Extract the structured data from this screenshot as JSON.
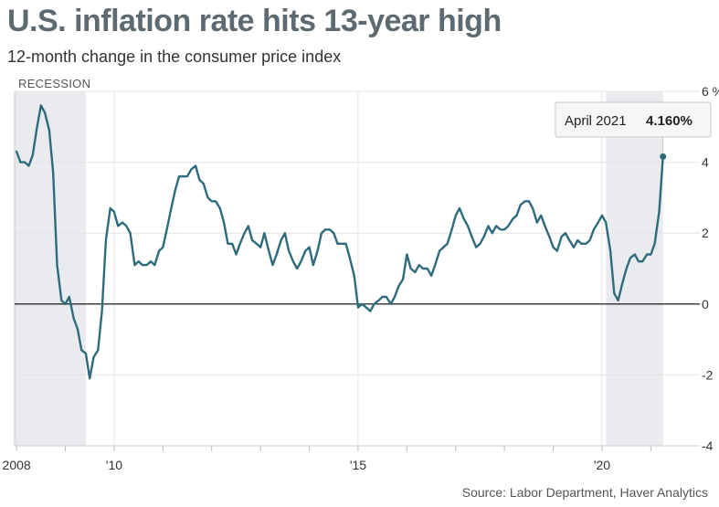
{
  "header": {
    "title": "U.S. inflation rate hits 13-year high",
    "subtitle": "12-month change in the consumer price index"
  },
  "footer": {
    "source": "Source: Labor Department, Haver Analytics"
  },
  "colors": {
    "line": "#2f6b7c",
    "recession": "#e9ebee",
    "zero_line": "#000000",
    "axis": "#cccccc"
  },
  "chart_data": {
    "type": "line",
    "title": "U.S. inflation rate hits 13-year high",
    "subtitle": "12-month change in the consumer price index",
    "x_unit": "year",
    "x_tick_labels": [
      {
        "x": 2008,
        "label": "2008"
      },
      {
        "x": 2010,
        "label": "'10"
      },
      {
        "x": 2015,
        "label": "'15"
      },
      {
        "x": 2020,
        "label": "'20"
      }
    ],
    "y_tick_labels": [
      {
        "y": 6,
        "label": "6 %"
      },
      {
        "y": 4,
        "label": "4"
      },
      {
        "y": 2,
        "label": "2"
      },
      {
        "y": 0,
        "label": "0"
      },
      {
        "y": -2,
        "label": "-2"
      },
      {
        "y": -4,
        "label": "-4"
      }
    ],
    "xlim": [
      2007.96,
      2021.33
    ],
    "ylim": [
      -4,
      6
    ],
    "legend": "none",
    "recession_label": "RECESSION",
    "recessions": [
      [
        2007.96,
        2009.42
      ],
      [
        2020.08,
        2021.25
      ]
    ],
    "highlight": {
      "x": 2021.25,
      "y": 4.16,
      "date_label": "April 2021",
      "value_label": "4.160%"
    },
    "series": [
      {
        "values": [
          [
            2008.0,
            4.3
          ],
          [
            2008.08,
            4.0
          ],
          [
            2008.17,
            4.0
          ],
          [
            2008.25,
            3.9
          ],
          [
            2008.33,
            4.2
          ],
          [
            2008.42,
            5.0
          ],
          [
            2008.5,
            5.6
          ],
          [
            2008.58,
            5.4
          ],
          [
            2008.67,
            4.9
          ],
          [
            2008.75,
            3.7
          ],
          [
            2008.83,
            1.1
          ],
          [
            2008.92,
            0.1
          ],
          [
            2009.0,
            0.0
          ],
          [
            2009.08,
            0.2
          ],
          [
            2009.17,
            -0.4
          ],
          [
            2009.25,
            -0.7
          ],
          [
            2009.33,
            -1.3
          ],
          [
            2009.42,
            -1.4
          ],
          [
            2009.5,
            -2.1
          ],
          [
            2009.58,
            -1.5
          ],
          [
            2009.67,
            -1.3
          ],
          [
            2009.75,
            -0.2
          ],
          [
            2009.83,
            1.8
          ],
          [
            2009.92,
            2.7
          ],
          [
            2010.0,
            2.6
          ],
          [
            2010.08,
            2.2
          ],
          [
            2010.17,
            2.3
          ],
          [
            2010.25,
            2.2
          ],
          [
            2010.33,
            2.0
          ],
          [
            2010.42,
            1.1
          ],
          [
            2010.5,
            1.2
          ],
          [
            2010.58,
            1.1
          ],
          [
            2010.67,
            1.1
          ],
          [
            2010.75,
            1.2
          ],
          [
            2010.83,
            1.1
          ],
          [
            2010.92,
            1.5
          ],
          [
            2011.0,
            1.6
          ],
          [
            2011.08,
            2.1
          ],
          [
            2011.17,
            2.7
          ],
          [
            2011.25,
            3.2
          ],
          [
            2011.33,
            3.6
          ],
          [
            2011.42,
            3.6
          ],
          [
            2011.5,
            3.6
          ],
          [
            2011.58,
            3.8
          ],
          [
            2011.67,
            3.9
          ],
          [
            2011.75,
            3.5
          ],
          [
            2011.83,
            3.4
          ],
          [
            2011.92,
            3.0
          ],
          [
            2012.0,
            2.9
          ],
          [
            2012.08,
            2.9
          ],
          [
            2012.17,
            2.7
          ],
          [
            2012.25,
            2.3
          ],
          [
            2012.33,
            1.7
          ],
          [
            2012.42,
            1.7
          ],
          [
            2012.5,
            1.4
          ],
          [
            2012.58,
            1.7
          ],
          [
            2012.67,
            2.0
          ],
          [
            2012.75,
            2.2
          ],
          [
            2012.83,
            1.8
          ],
          [
            2012.92,
            1.7
          ],
          [
            2013.0,
            1.6
          ],
          [
            2013.08,
            2.0
          ],
          [
            2013.17,
            1.5
          ],
          [
            2013.25,
            1.1
          ],
          [
            2013.33,
            1.4
          ],
          [
            2013.42,
            1.8
          ],
          [
            2013.5,
            2.0
          ],
          [
            2013.58,
            1.5
          ],
          [
            2013.67,
            1.2
          ],
          [
            2013.75,
            1.0
          ],
          [
            2013.83,
            1.2
          ],
          [
            2013.92,
            1.5
          ],
          [
            2014.0,
            1.6
          ],
          [
            2014.08,
            1.1
          ],
          [
            2014.17,
            1.5
          ],
          [
            2014.25,
            2.0
          ],
          [
            2014.33,
            2.1
          ],
          [
            2014.42,
            2.1
          ],
          [
            2014.5,
            2.0
          ],
          [
            2014.58,
            1.7
          ],
          [
            2014.67,
            1.7
          ],
          [
            2014.75,
            1.7
          ],
          [
            2014.83,
            1.3
          ],
          [
            2014.92,
            0.8
          ],
          [
            2015.0,
            -0.1
          ],
          [
            2015.08,
            0.0
          ],
          [
            2015.17,
            -0.1
          ],
          [
            2015.25,
            -0.2
          ],
          [
            2015.33,
            0.0
          ],
          [
            2015.42,
            0.1
          ],
          [
            2015.5,
            0.2
          ],
          [
            2015.58,
            0.2
          ],
          [
            2015.67,
            0.0
          ],
          [
            2015.75,
            0.2
          ],
          [
            2015.83,
            0.5
          ],
          [
            2015.92,
            0.7
          ],
          [
            2016.0,
            1.4
          ],
          [
            2016.08,
            1.0
          ],
          [
            2016.17,
            0.9
          ],
          [
            2016.25,
            1.1
          ],
          [
            2016.33,
            1.0
          ],
          [
            2016.42,
            1.0
          ],
          [
            2016.5,
            0.8
          ],
          [
            2016.58,
            1.1
          ],
          [
            2016.67,
            1.5
          ],
          [
            2016.75,
            1.6
          ],
          [
            2016.83,
            1.7
          ],
          [
            2016.92,
            2.1
          ],
          [
            2017.0,
            2.5
          ],
          [
            2017.08,
            2.7
          ],
          [
            2017.17,
            2.4
          ],
          [
            2017.25,
            2.2
          ],
          [
            2017.33,
            1.9
          ],
          [
            2017.42,
            1.6
          ],
          [
            2017.5,
            1.7
          ],
          [
            2017.58,
            1.9
          ],
          [
            2017.67,
            2.2
          ],
          [
            2017.75,
            2.0
          ],
          [
            2017.83,
            2.2
          ],
          [
            2017.92,
            2.1
          ],
          [
            2018.0,
            2.1
          ],
          [
            2018.08,
            2.2
          ],
          [
            2018.17,
            2.4
          ],
          [
            2018.25,
            2.5
          ],
          [
            2018.33,
            2.8
          ],
          [
            2018.42,
            2.9
          ],
          [
            2018.5,
            2.9
          ],
          [
            2018.58,
            2.7
          ],
          [
            2018.67,
            2.3
          ],
          [
            2018.75,
            2.5
          ],
          [
            2018.83,
            2.2
          ],
          [
            2018.92,
            1.9
          ],
          [
            2019.0,
            1.6
          ],
          [
            2019.08,
            1.5
          ],
          [
            2019.17,
            1.9
          ],
          [
            2019.25,
            2.0
          ],
          [
            2019.33,
            1.8
          ],
          [
            2019.42,
            1.6
          ],
          [
            2019.5,
            1.8
          ],
          [
            2019.58,
            1.7
          ],
          [
            2019.67,
            1.7
          ],
          [
            2019.75,
            1.8
          ],
          [
            2019.83,
            2.1
          ],
          [
            2019.92,
            2.3
          ],
          [
            2020.0,
            2.5
          ],
          [
            2020.08,
            2.3
          ],
          [
            2020.17,
            1.5
          ],
          [
            2020.25,
            0.3
          ],
          [
            2020.33,
            0.1
          ],
          [
            2020.42,
            0.6
          ],
          [
            2020.5,
            1.0
          ],
          [
            2020.58,
            1.3
          ],
          [
            2020.67,
            1.4
          ],
          [
            2020.75,
            1.2
          ],
          [
            2020.83,
            1.2
          ],
          [
            2020.92,
            1.4
          ],
          [
            2021.0,
            1.4
          ],
          [
            2021.08,
            1.7
          ],
          [
            2021.17,
            2.6
          ],
          [
            2021.25,
            4.16
          ]
        ]
      }
    ]
  }
}
